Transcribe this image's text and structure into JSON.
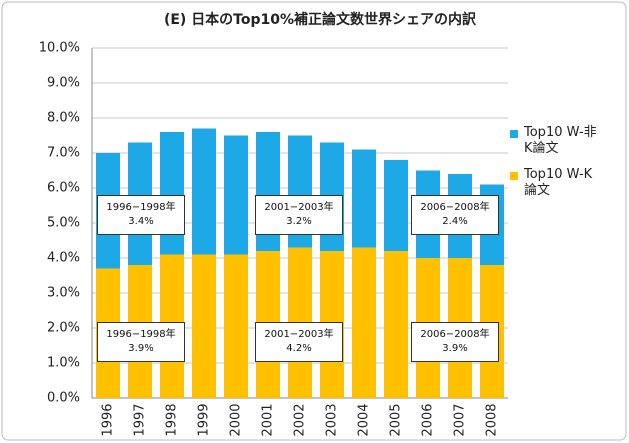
{
  "chart_data": {
    "type": "bar",
    "stacked": true,
    "title": "(E) 日本のTop10%補正論文数世界シェアの内訳",
    "categories": [
      "1996",
      "1997",
      "1998",
      "1999",
      "2000",
      "2001",
      "2002",
      "2003",
      "2004",
      "2005",
      "2006",
      "2007",
      "2008"
    ],
    "series": [
      {
        "name": "Top10 W-非K論文",
        "color": "#1fa8e6",
        "values": [
          3.3,
          3.5,
          3.5,
          3.6,
          3.4,
          3.4,
          3.2,
          3.1,
          2.8,
          2.6,
          2.5,
          2.4,
          2.3
        ]
      },
      {
        "name": "Top10 W-K論文",
        "color": "#ffc000",
        "values": [
          3.7,
          3.8,
          4.1,
          4.1,
          4.1,
          4.2,
          4.3,
          4.2,
          4.3,
          4.2,
          4.0,
          4.0,
          3.8
        ]
      }
    ],
    "ylim": [
      0,
      10
    ],
    "yticks": [
      {
        "value": 0,
        "label": "0.0%"
      },
      {
        "value": 1,
        "label": "1.0%"
      },
      {
        "value": 2,
        "label": "2.0%"
      },
      {
        "value": 3,
        "label": "3.0%"
      },
      {
        "value": 4,
        "label": "4.0%"
      },
      {
        "value": 5,
        "label": "5.0%"
      },
      {
        "value": 6,
        "label": "6.0%"
      },
      {
        "value": 7,
        "label": "7.0%"
      },
      {
        "value": 8,
        "label": "8.0%"
      },
      {
        "value": 9,
        "label": "9.0%"
      },
      {
        "value": 10,
        "label": "10.0%"
      }
    ],
    "grid": true,
    "annotations": [
      {
        "period": "1996−1998年",
        "share": "3.4%"
      },
      {
        "period": "2001−2003年",
        "share": "3.2%"
      },
      {
        "period": "2006−2008年",
        "share": "2.4%"
      },
      {
        "period": "1996−1998年",
        "share": "3.9%"
      },
      {
        "period": "2001−2003年",
        "share": "4.2%"
      },
      {
        "period": "2006−2008年",
        "share": "3.9%"
      }
    ]
  }
}
